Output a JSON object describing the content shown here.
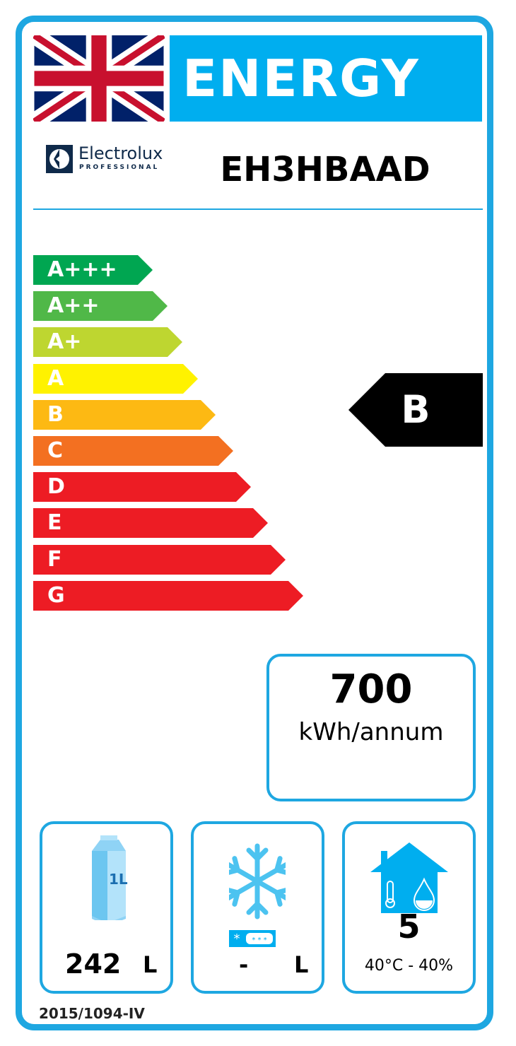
{
  "header": {
    "title": "ENERGY",
    "flag": "union-jack",
    "brand": "Electrolux",
    "brand_sub": "PROFESSIONAL",
    "model": "EH3HBAAD"
  },
  "scale": {
    "classes": [
      {
        "label": "A+++",
        "color": "#00a651"
      },
      {
        "label": "A++",
        "color": "#50b848"
      },
      {
        "label": "A+",
        "color": "#bed630"
      },
      {
        "label": "A",
        "color": "#fff200"
      },
      {
        "label": "B",
        "color": "#fdb913"
      },
      {
        "label": "C",
        "color": "#f37021"
      },
      {
        "label": "D",
        "color": "#ed1c24"
      },
      {
        "label": "E",
        "color": "#ed1c24"
      },
      {
        "label": "F",
        "color": "#ed1c24"
      },
      {
        "label": "G",
        "color": "#ed1c24"
      }
    ],
    "rating": "B"
  },
  "consumption": {
    "value": "700",
    "unit": "kWh/annum"
  },
  "specs": {
    "chill_volume": {
      "icon": "milk-carton-icon",
      "icon_text": "1L",
      "value": "242",
      "unit": "L"
    },
    "frozen_volume": {
      "icon": "snowflake-icon",
      "value": "-",
      "unit": "L"
    },
    "climate": {
      "icon": "house-climate-icon",
      "value": "5",
      "conditions": "40°C - 40%"
    }
  },
  "footer": {
    "regulation": "2015/1094-IV"
  },
  "colors": {
    "accent": "#1ea7e1",
    "banner": "#00aeef"
  }
}
